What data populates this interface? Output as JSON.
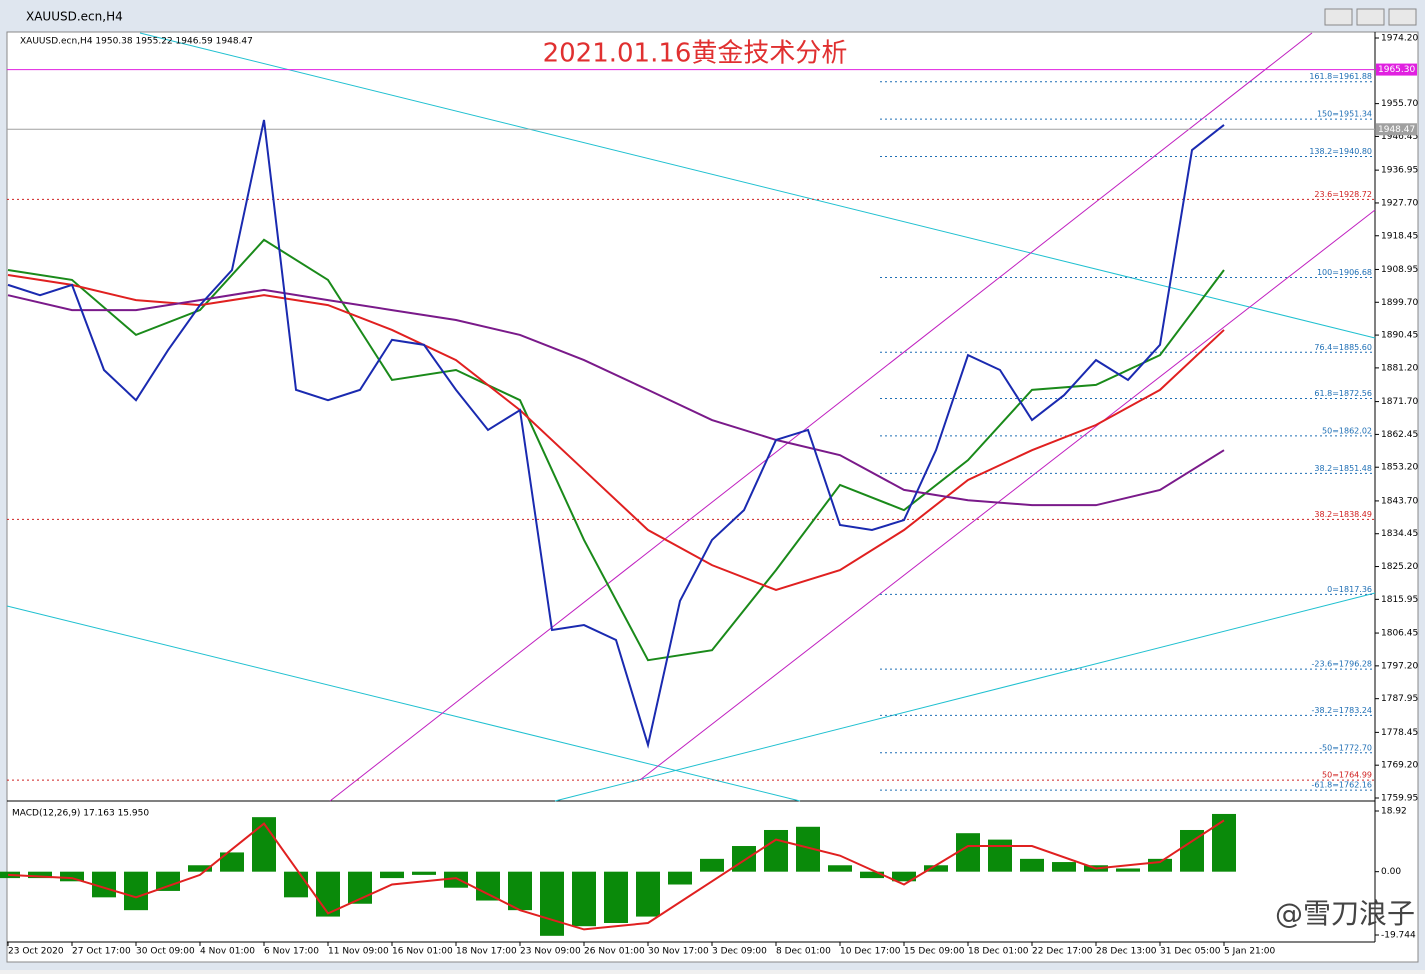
{
  "window": {
    "title": "XAUUSD.ecn,H4"
  },
  "chart_data": {
    "type": "line",
    "header": "XAUUSD.ecn,H4  1950.38 1955.22 1946.59 1948.47",
    "title": "2021.01.16黄金技术分析",
    "categories": [
      "23 Oct 2020",
      "27 Oct 17:00",
      "30 Oct 09:00",
      "4 Nov 01:00",
      "6 Nov 17:00",
      "11 Nov 09:00",
      "16 Nov 01:00",
      "18 Nov 17:00",
      "23 Nov 09:00",
      "26 Nov 01:00",
      "30 Nov 17:00",
      "3 Dec 09:00",
      "8 Dec 01:00",
      "10 Dec 17:00",
      "15 Dec 09:00",
      "18 Dec 01:00",
      "22 Dec 17:00",
      "28 Dec 13:00",
      "31 Dec 05:00",
      "5 Jan 21:00"
    ],
    "ylim": [
      1759.95,
      1974.2
    ],
    "yticks": [
      {
        "value": 1974.2,
        "label": "1974.20"
      },
      {
        "value": 1955.7,
        "label": "1955.70"
      },
      {
        "value": 1946.45,
        "label": "1946.45"
      },
      {
        "value": 1936.95,
        "label": "1936.95"
      },
      {
        "value": 1927.7,
        "label": "1927.70"
      },
      {
        "value": 1918.45,
        "label": "1918.45"
      },
      {
        "value": 1908.95,
        "label": "1908.95"
      },
      {
        "value": 1899.7,
        "label": "1899.70"
      },
      {
        "value": 1890.45,
        "label": "1890.45"
      },
      {
        "value": 1881.2,
        "label": "1881.20"
      },
      {
        "value": 1871.7,
        "label": "1871.70"
      },
      {
        "value": 1862.45,
        "label": "1862.45"
      },
      {
        "value": 1853.2,
        "label": "1853.20"
      },
      {
        "value": 1843.7,
        "label": "1843.70"
      },
      {
        "value": 1834.45,
        "label": "1834.45"
      },
      {
        "value": 1825.2,
        "label": "1825.20"
      },
      {
        "value": 1815.95,
        "label": "1815.95"
      },
      {
        "value": 1806.45,
        "label": "1806.45"
      },
      {
        "value": 1797.2,
        "label": "1797.20"
      },
      {
        "value": 1787.95,
        "label": "1787.95"
      },
      {
        "value": 1778.45,
        "label": "1778.45"
      },
      {
        "value": 1769.2,
        "label": "1769.20"
      },
      {
        "value": 1759.95,
        "label": "1759.95"
      }
    ],
    "markers": [
      {
        "value": 1965.3,
        "label": "1965.30",
        "color": "#e020e0"
      },
      {
        "value": 1948.47,
        "label": "1948.47",
        "color": "#a0a0a0"
      }
    ],
    "levels": [
      {
        "value": 1961.88,
        "label": "161.8=1961.88",
        "color": "#1f6fb5"
      },
      {
        "value": 1951.34,
        "label": "150=1951.34",
        "color": "#1f6fb5"
      },
      {
        "value": 1940.8,
        "label": "138.2=1940.80",
        "color": "#1f6fb5"
      },
      {
        "value": 1928.72,
        "label": "23.6=1928.72",
        "color": "#d02020"
      },
      {
        "value": 1906.68,
        "label": "100=1906.68",
        "color": "#1f6fb5"
      },
      {
        "value": 1885.6,
        "label": "76.4=1885.60",
        "color": "#1f6fb5"
      },
      {
        "value": 1872.56,
        "label": "61.8=1872.56",
        "color": "#1f6fb5"
      },
      {
        "value": 1862.02,
        "label": "50=1862.02",
        "color": "#1f6fb5"
      },
      {
        "value": 1851.48,
        "label": "38.2=1851.48",
        "color": "#1f6fb5"
      },
      {
        "value": 1838.49,
        "label": "38.2=1838.49",
        "color": "#d02020"
      },
      {
        "value": 1817.36,
        "label": "0=1817.36",
        "color": "#1f6fb5"
      },
      {
        "value": 1796.28,
        "label": "-23.6=1796.28",
        "color": "#1f6fb5"
      },
      {
        "value": 1783.24,
        "label": "-38.2=1783.24",
        "color": "#1f6fb5"
      },
      {
        "value": 1772.7,
        "label": "-50=1772.70",
        "color": "#1f6fb5"
      },
      {
        "value": 1764.99,
        "label": "50=1764.99",
        "color": "#d02020"
      },
      {
        "value": 1762.16,
        "label": "-61.8=1762.16",
        "color": "#1f6fb5"
      }
    ],
    "x": [
      0,
      0.5,
      1,
      1.5,
      2,
      2.5,
      3,
      3.5,
      4,
      4.5,
      5,
      5.5,
      6,
      6.5,
      7,
      7.5,
      8,
      8.5,
      9,
      9.5,
      10,
      10.5,
      11,
      11.5,
      12,
      12.5,
      13,
      13.5,
      14,
      14.5,
      15,
      15.5,
      16,
      16.5,
      17,
      17.5,
      18,
      18.5,
      19
    ],
    "price": {
      "color": "#1a2ab0",
      "values": [
        1904.6,
        1901.7,
        1904.6,
        1880.6,
        1872.1,
        1886.2,
        1898.9,
        1908.8,
        1951.1,
        1875.0,
        1872.1,
        1875.0,
        1889.1,
        1887.7,
        1875.0,
        1863.7,
        1869.3,
        1807.3,
        1808.7,
        1804.5,
        1774.9,
        1815.5,
        1832.7,
        1841.1,
        1860.9,
        1863.7,
        1836.9,
        1835.5,
        1838.3,
        1858.0,
        1884.8,
        1880.6,
        1866.5,
        1873.5,
        1883.4,
        1877.8,
        1887.7,
        1942.6,
        1949.7
      ]
    },
    "series": [
      {
        "color": "#1a8a1a",
        "values": [
          1908.8,
          1906.0,
          1890.5,
          1897.5,
          1917.3,
          1906.0,
          1877.8,
          1880.6,
          1872.1,
          1832.7,
          1798.8,
          1801.6,
          1824.2,
          1848.2,
          1841.1,
          1855.2,
          1875.0,
          1876.4,
          1884.8,
          1908.8
        ]
      },
      {
        "color": "#e02020",
        "values": [
          1907.4,
          1904.6,
          1900.3,
          1898.9,
          1901.7,
          1898.9,
          1891.9,
          1883.4,
          1869.3,
          1852.4,
          1835.5,
          1825.6,
          1818.6,
          1824.2,
          1835.5,
          1849.6,
          1858.0,
          1865.1,
          1875.0,
          1891.9
        ]
      },
      {
        "color": "#7a1a8a",
        "values": [
          1901.7,
          1897.5,
          1897.5,
          1900.3,
          1903.2,
          1900.3,
          1897.5,
          1894.7,
          1890.5,
          1883.4,
          1875.0,
          1866.5,
          1860.9,
          1856.6,
          1846.8,
          1843.9,
          1842.5,
          1842.5,
          1846.8,
          1858.0
        ]
      }
    ],
    "macd": {
      "label": "MACD(12,26,9) 17.163 15.950",
      "y2lim": [
        -19.744,
        18.92
      ],
      "y2ticks": [
        {
          "value": 18.92,
          "label": "18.92"
        },
        {
          "value": 0,
          "label": "0.00"
        },
        {
          "value": -19.744,
          "label": "-19.744"
        }
      ],
      "histogram": {
        "color": "#0a8a0a",
        "values": [
          -2,
          -2,
          -3,
          -8,
          -12,
          -6,
          2,
          6,
          17,
          -8,
          -14,
          -10,
          -2,
          -1,
          -5,
          -9,
          -12,
          -20,
          -17,
          -16,
          -14,
          -4,
          4,
          8,
          13,
          14,
          2,
          -2,
          -3,
          2,
          12,
          10,
          4,
          3,
          2,
          1,
          4,
          13,
          18
        ]
      },
      "signal": {
        "color": "#e02020",
        "values": [
          -1,
          -2,
          -8,
          -1,
          15,
          -13,
          -4,
          -2,
          -12,
          -18,
          -16,
          -3,
          10,
          5,
          -4,
          8,
          8,
          1,
          3,
          16
        ]
      }
    }
  },
  "watermark": "@雪刀浪子"
}
